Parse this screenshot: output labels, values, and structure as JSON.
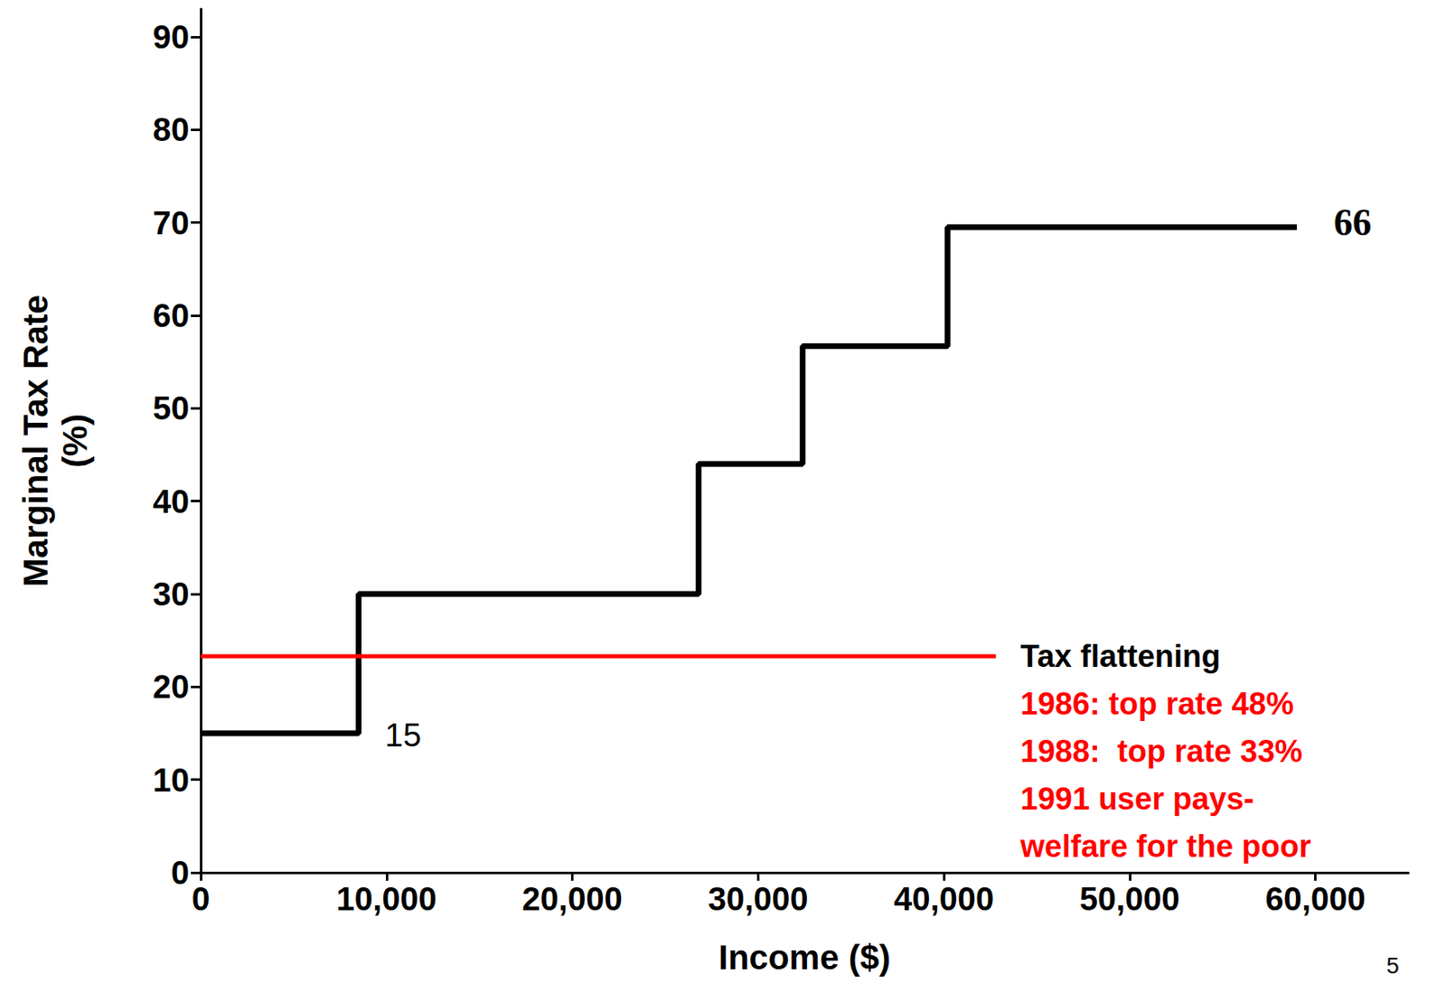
{
  "chart_data": {
    "type": "line",
    "x_label": "Income ($)",
    "y_label": "Marginal Tax Rate\n(%)",
    "xlim": [
      0,
      65000
    ],
    "ylim": [
      0,
      93
    ],
    "xticks": [
      0,
      {
        "value": 10000,
        "label": "10,000"
      },
      {
        "value": 20000,
        "label": "20,000"
      },
      {
        "value": 30000,
        "label": "30,000"
      },
      {
        "value": 40000,
        "label": "40,000"
      },
      {
        "value": 50000,
        "label": "50,000"
      },
      {
        "value": 60000,
        "label": "60,000"
      }
    ],
    "yticks": [
      0,
      10,
      20,
      30,
      40,
      50,
      60,
      70,
      80,
      90
    ],
    "grid": false,
    "series": [
      {
        "type": "step",
        "color": "#000000",
        "x": [
          0,
          8500,
          26800,
          32400,
          40200,
          59000
        ],
        "values": [
          15,
          30,
          44,
          56.7,
          69.5,
          69.5
        ]
      },
      {
        "type": "line",
        "color": "#ff0000",
        "x": [
          0,
          42800
        ],
        "values": [
          23.3,
          23.3
        ]
      }
    ],
    "annotations": [
      "15",
      "66"
    ],
    "note_title": "Tax flattening",
    "note_lines": [
      "1986: top rate 48%",
      "1988:  top rate 33%",
      "1991 user pays-",
      "welfare for the poor"
    ],
    "page_number": "5"
  }
}
